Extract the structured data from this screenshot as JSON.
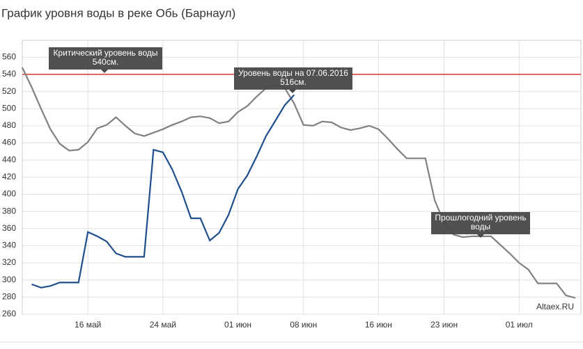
{
  "chart_data": {
    "type": "line",
    "title": "График уровня воды в реке Обь (Барнаул)",
    "categories": [
      null,
      null,
      null,
      null,
      null,
      null,
      null,
      "16 май",
      null,
      null,
      null,
      null,
      null,
      null,
      null,
      "24 май",
      null,
      null,
      null,
      null,
      null,
      null,
      null,
      "01 июн",
      null,
      null,
      null,
      null,
      null,
      null,
      "08 июн",
      null,
      null,
      null,
      null,
      null,
      null,
      null,
      "16 июн",
      null,
      null,
      null,
      null,
      null,
      null,
      "23 июн",
      null,
      null,
      null,
      null,
      null,
      null,
      null,
      "01 июл",
      null,
      null,
      null,
      null,
      null,
      null
    ],
    "series": [
      {
        "color": "#808080",
        "values": [
          548,
          525,
          500,
          476,
          459,
          451,
          452,
          461,
          477,
          481,
          490,
          480,
          471,
          468,
          472,
          476,
          481,
          485,
          490,
          491,
          489,
          483,
          485,
          496,
          503,
          514,
          524,
          528,
          524,
          506,
          481,
          480,
          485,
          484,
          478,
          475,
          477,
          480,
          476,
          465,
          453,
          442,
          442,
          442,
          393,
          367,
          353,
          350,
          351,
          351,
          351,
          341,
          331,
          320,
          312,
          296,
          296,
          296,
          282,
          279
        ]
      },
      {
        "color": "#1f4e8c",
        "values": [
          null,
          295,
          291,
          293,
          297,
          297,
          297,
          356,
          351,
          345,
          331,
          327,
          327,
          327,
          452,
          449,
          429,
          403,
          372,
          372,
          346,
          355,
          376,
          406,
          422,
          444,
          468,
          486,
          504,
          516,
          null,
          null,
          null,
          null,
          null,
          null,
          null,
          null,
          null,
          null,
          null,
          null,
          null,
          null,
          null,
          null,
          null,
          null,
          null,
          null,
          null,
          null,
          null,
          null,
          null,
          null,
          null,
          null,
          null,
          null
        ]
      }
    ],
    "critical_level": 540,
    "critical_color": "#e06666",
    "annotations": [
      [
        "Критический уровень воды",
        "540см."
      ],
      [
        "Уровень воды на 07.06.2016",
        "516см."
      ],
      [
        "Прошлогодний уровень",
        "воды"
      ]
    ],
    "watermark": "Altaex.RU",
    "ylim": [
      260,
      570
    ],
    "yticks": [
      260,
      280,
      300,
      320,
      340,
      360,
      380,
      400,
      420,
      440,
      460,
      480,
      500,
      520,
      540,
      560
    ],
    "grid": true
  }
}
